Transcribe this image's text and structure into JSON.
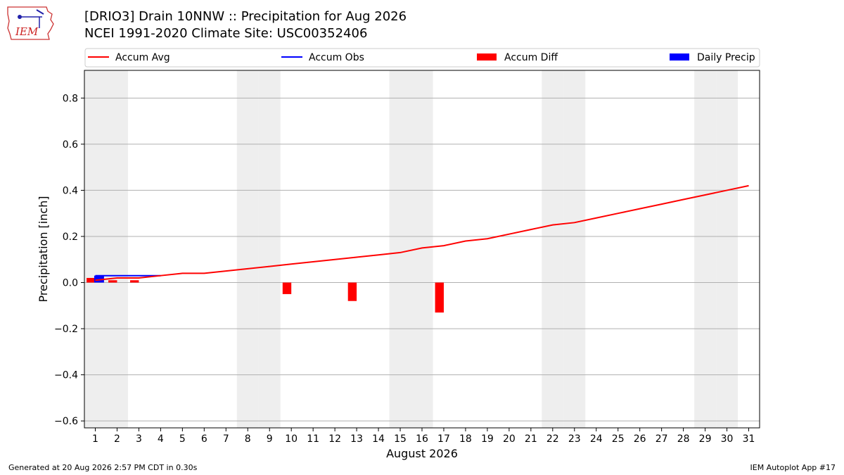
{
  "header": {
    "title_line1": "[DRIO3] Drain 10NNW :: Precipitation for Aug 2026",
    "title_line2": "NCEI 1991-2020 Climate Site: USC00352406",
    "logo_text": "IEM"
  },
  "footer": {
    "left": "Generated at 20 Aug 2026 2:57 PM CDT in 0.30s",
    "right": "IEM Autoplot App #17"
  },
  "colors": {
    "accum_avg": "#ff0000",
    "accum_obs": "#0000ff",
    "accum_diff": "#ff0000",
    "daily_precip": "#0000ff",
    "weekend_band": "#eeeeee",
    "grid": "#b0b0b0"
  },
  "chart_data": {
    "type": "bar",
    "xlabel": "August 2026",
    "ylabel": "Precipitation [inch]",
    "xlim": [
      0.5,
      31.5
    ],
    "ylim": [
      -0.63,
      0.92
    ],
    "yticks": [
      -0.6,
      -0.4,
      -0.2,
      0.0,
      0.2,
      0.4,
      0.6,
      0.8
    ],
    "ytick_labels": [
      "−0.6",
      "−0.4",
      "−0.2",
      "0.0",
      "0.2",
      "0.4",
      "0.6",
      "0.8"
    ],
    "days": [
      1,
      2,
      3,
      4,
      5,
      6,
      7,
      8,
      9,
      10,
      11,
      12,
      13,
      14,
      15,
      16,
      17,
      18,
      19,
      20,
      21,
      22,
      23,
      24,
      25,
      26,
      27,
      28,
      29,
      30,
      31
    ],
    "weekend_days": [
      1,
      2,
      8,
      9,
      15,
      16,
      22,
      23,
      29,
      30
    ],
    "grid": true,
    "legend": {
      "placement": "top",
      "entries": [
        {
          "key": "accum_avg",
          "label": "Accum Avg",
          "kind": "line"
        },
        {
          "key": "accum_obs",
          "label": "Accum Obs",
          "kind": "line"
        },
        {
          "key": "accum_diff",
          "label": "Accum Diff",
          "kind": "bar"
        },
        {
          "key": "daily_precip",
          "label": "Daily Precip",
          "kind": "bar"
        }
      ]
    },
    "series": [
      {
        "key": "accum_avg",
        "name": "Accum Avg",
        "kind": "line",
        "x": [
          1,
          2,
          3,
          4,
          5,
          6,
          7,
          8,
          9,
          10,
          11,
          12,
          13,
          14,
          15,
          16,
          17,
          18,
          19,
          20,
          21,
          22,
          23,
          24,
          25,
          26,
          27,
          28,
          29,
          30,
          31
        ],
        "values": [
          0.01,
          0.02,
          0.02,
          0.03,
          0.04,
          0.04,
          0.05,
          0.06,
          0.07,
          0.08,
          0.09,
          0.1,
          0.11,
          0.12,
          0.13,
          0.15,
          0.16,
          0.18,
          0.19,
          0.21,
          0.23,
          0.25,
          0.26,
          0.28,
          0.3,
          0.32,
          0.34,
          0.36,
          0.38,
          0.4,
          0.42
        ]
      },
      {
        "key": "accum_obs",
        "name": "Accum Obs",
        "kind": "line",
        "x": [
          1,
          2,
          3,
          4
        ],
        "values": [
          0.03,
          0.03,
          0.03,
          0.03
        ]
      },
      {
        "key": "accum_diff",
        "name": "Accum Diff",
        "kind": "bar",
        "x": [
          1,
          2,
          3,
          10,
          13,
          17
        ],
        "values": [
          0.02,
          0.01,
          0.01,
          -0.05,
          -0.08,
          -0.13
        ]
      },
      {
        "key": "daily_precip",
        "name": "Daily Precip",
        "kind": "bar",
        "x": [
          1
        ],
        "values": [
          0.03
        ]
      }
    ]
  }
}
